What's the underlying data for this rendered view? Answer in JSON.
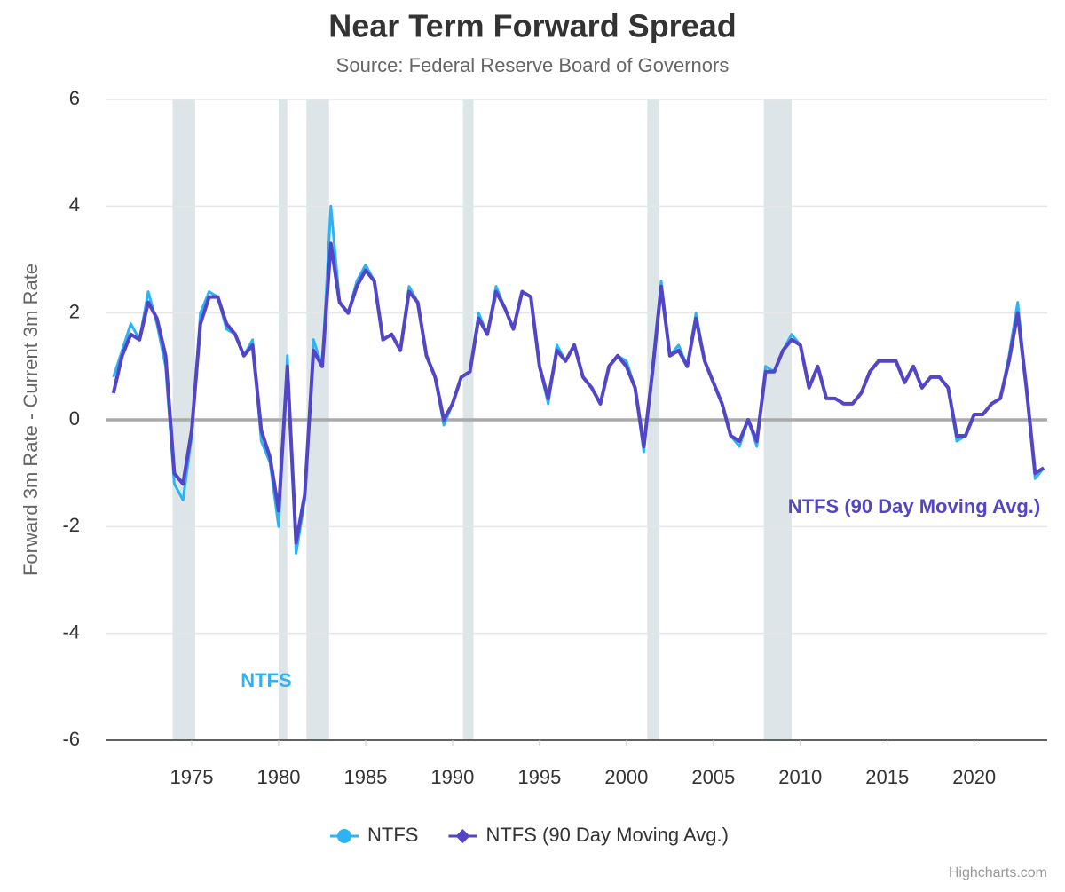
{
  "chart_data": {
    "type": "line",
    "title": "Near Term Forward Spread",
    "subtitle": "Source: Federal Reserve Board of Governors",
    "y_axis_label": "Forward 3m Rate - Current 3m Rate",
    "credits": "Highcharts.com",
    "x": [
      1970.5,
      1971,
      1971.5,
      1972,
      1972.5,
      1973,
      1973.5,
      1974,
      1974.5,
      1975,
      1975.5,
      1976,
      1976.5,
      1977,
      1977.5,
      1978,
      1978.5,
      1979,
      1979.5,
      1980,
      1980.5,
      1981,
      1981.5,
      1982,
      1982.5,
      1983,
      1983.5,
      1984,
      1984.5,
      1985,
      1985.5,
      1986,
      1986.5,
      1987,
      1987.5,
      1988,
      1988.5,
      1989,
      1989.5,
      1990,
      1990.5,
      1991,
      1991.5,
      1992,
      1992.5,
      1993,
      1993.5,
      1994,
      1994.5,
      1995,
      1995.5,
      1996,
      1996.5,
      1997,
      1997.5,
      1998,
      1998.5,
      1999,
      1999.5,
      2000,
      2000.5,
      2001,
      2001.5,
      2002,
      2002.5,
      2003,
      2003.5,
      2004,
      2004.5,
      2005,
      2005.5,
      2006,
      2006.5,
      2007,
      2007.5,
      2008,
      2008.5,
      2009,
      2009.5,
      2010,
      2010.5,
      2011,
      2011.5,
      2012,
      2012.5,
      2013,
      2013.5,
      2014,
      2014.5,
      2015,
      2015.5,
      2016,
      2016.5,
      2017,
      2017.5,
      2018,
      2018.5,
      2019,
      2019.5,
      2020,
      2020.5,
      2021,
      2021.5,
      2022,
      2022.5,
      2023,
      2023.5,
      2024
    ],
    "series": [
      {
        "name": "NTFS",
        "color": "#2db2f3",
        "marker": "circle",
        "values": [
          0.8,
          1.3,
          1.8,
          1.5,
          2.4,
          1.8,
          1.0,
          -1.2,
          -1.5,
          -0.3,
          2.0,
          2.4,
          2.3,
          1.7,
          1.6,
          1.2,
          1.5,
          -0.4,
          -0.8,
          -2.0,
          1.2,
          -2.5,
          -1.5,
          1.5,
          1.0,
          4.0,
          2.2,
          2.0,
          2.6,
          2.9,
          2.6,
          1.5,
          1.6,
          1.3,
          2.5,
          2.2,
          1.2,
          0.8,
          -0.1,
          0.3,
          0.8,
          0.9,
          2.0,
          1.6,
          2.5,
          2.1,
          1.7,
          2.4,
          2.3,
          1.0,
          0.3,
          1.4,
          1.1,
          1.4,
          0.8,
          0.6,
          0.3,
          1.0,
          1.2,
          1.1,
          0.6,
          -0.6,
          1.0,
          2.6,
          1.2,
          1.4,
          1.0,
          2.0,
          1.1,
          0.7,
          0.3,
          -0.3,
          -0.5,
          0.0,
          -0.5,
          1.0,
          0.9,
          1.3,
          1.6,
          1.4,
          0.6,
          1.0,
          0.4,
          0.4,
          0.3,
          0.3,
          0.5,
          0.9,
          1.1,
          1.1,
          1.1,
          0.7,
          1.0,
          0.6,
          0.8,
          0.8,
          0.6,
          -0.4,
          -0.3,
          0.1,
          0.1,
          0.3,
          0.4,
          1.2,
          2.2,
          0.6,
          -1.1,
          -0.9
        ]
      },
      {
        "name": "NTFS (90 Day Moving Avg.)",
        "color": "#5346c6",
        "marker": "diamond",
        "values": [
          0.5,
          1.2,
          1.6,
          1.5,
          2.2,
          1.9,
          1.2,
          -1.0,
          -1.2,
          -0.2,
          1.8,
          2.3,
          2.3,
          1.8,
          1.6,
          1.2,
          1.4,
          -0.2,
          -0.7,
          -1.7,
          1.0,
          -2.3,
          -1.4,
          1.3,
          1.0,
          3.3,
          2.2,
          2.0,
          2.5,
          2.8,
          2.6,
          1.5,
          1.6,
          1.3,
          2.4,
          2.2,
          1.2,
          0.8,
          0.0,
          0.3,
          0.8,
          0.9,
          1.9,
          1.6,
          2.4,
          2.1,
          1.7,
          2.4,
          2.3,
          1.0,
          0.4,
          1.3,
          1.1,
          1.4,
          0.8,
          0.6,
          0.3,
          1.0,
          1.2,
          1.0,
          0.6,
          -0.5,
          0.9,
          2.5,
          1.2,
          1.3,
          1.0,
          1.9,
          1.1,
          0.7,
          0.3,
          -0.3,
          -0.4,
          0.0,
          -0.4,
          0.9,
          0.9,
          1.3,
          1.5,
          1.4,
          0.6,
          1.0,
          0.4,
          0.4,
          0.3,
          0.3,
          0.5,
          0.9,
          1.1,
          1.1,
          1.1,
          0.7,
          1.0,
          0.6,
          0.8,
          0.8,
          0.6,
          -0.3,
          -0.3,
          0.1,
          0.1,
          0.3,
          0.4,
          1.1,
          2.0,
          0.6,
          -1.0,
          -0.9
        ]
      }
    ],
    "recession_bands": [
      [
        1973.9,
        1975.2
      ],
      [
        1980.0,
        1980.5
      ],
      [
        1981.6,
        1982.9
      ],
      [
        1990.6,
        1991.2
      ],
      [
        2001.2,
        2001.9
      ],
      [
        2007.9,
        2009.5
      ]
    ],
    "band_color": "#dde5e8",
    "xlim": [
      1970.1,
      2024.2
    ],
    "xticks": [
      1975,
      1980,
      1985,
      1990,
      1995,
      2000,
      2005,
      2010,
      2015,
      2020
    ],
    "ylim": [
      -6,
      6
    ],
    "yticks": [
      -6,
      -4,
      -2,
      0,
      2,
      4,
      6
    ],
    "grid": true,
    "zero_line": true,
    "legend_position": "bottom"
  }
}
